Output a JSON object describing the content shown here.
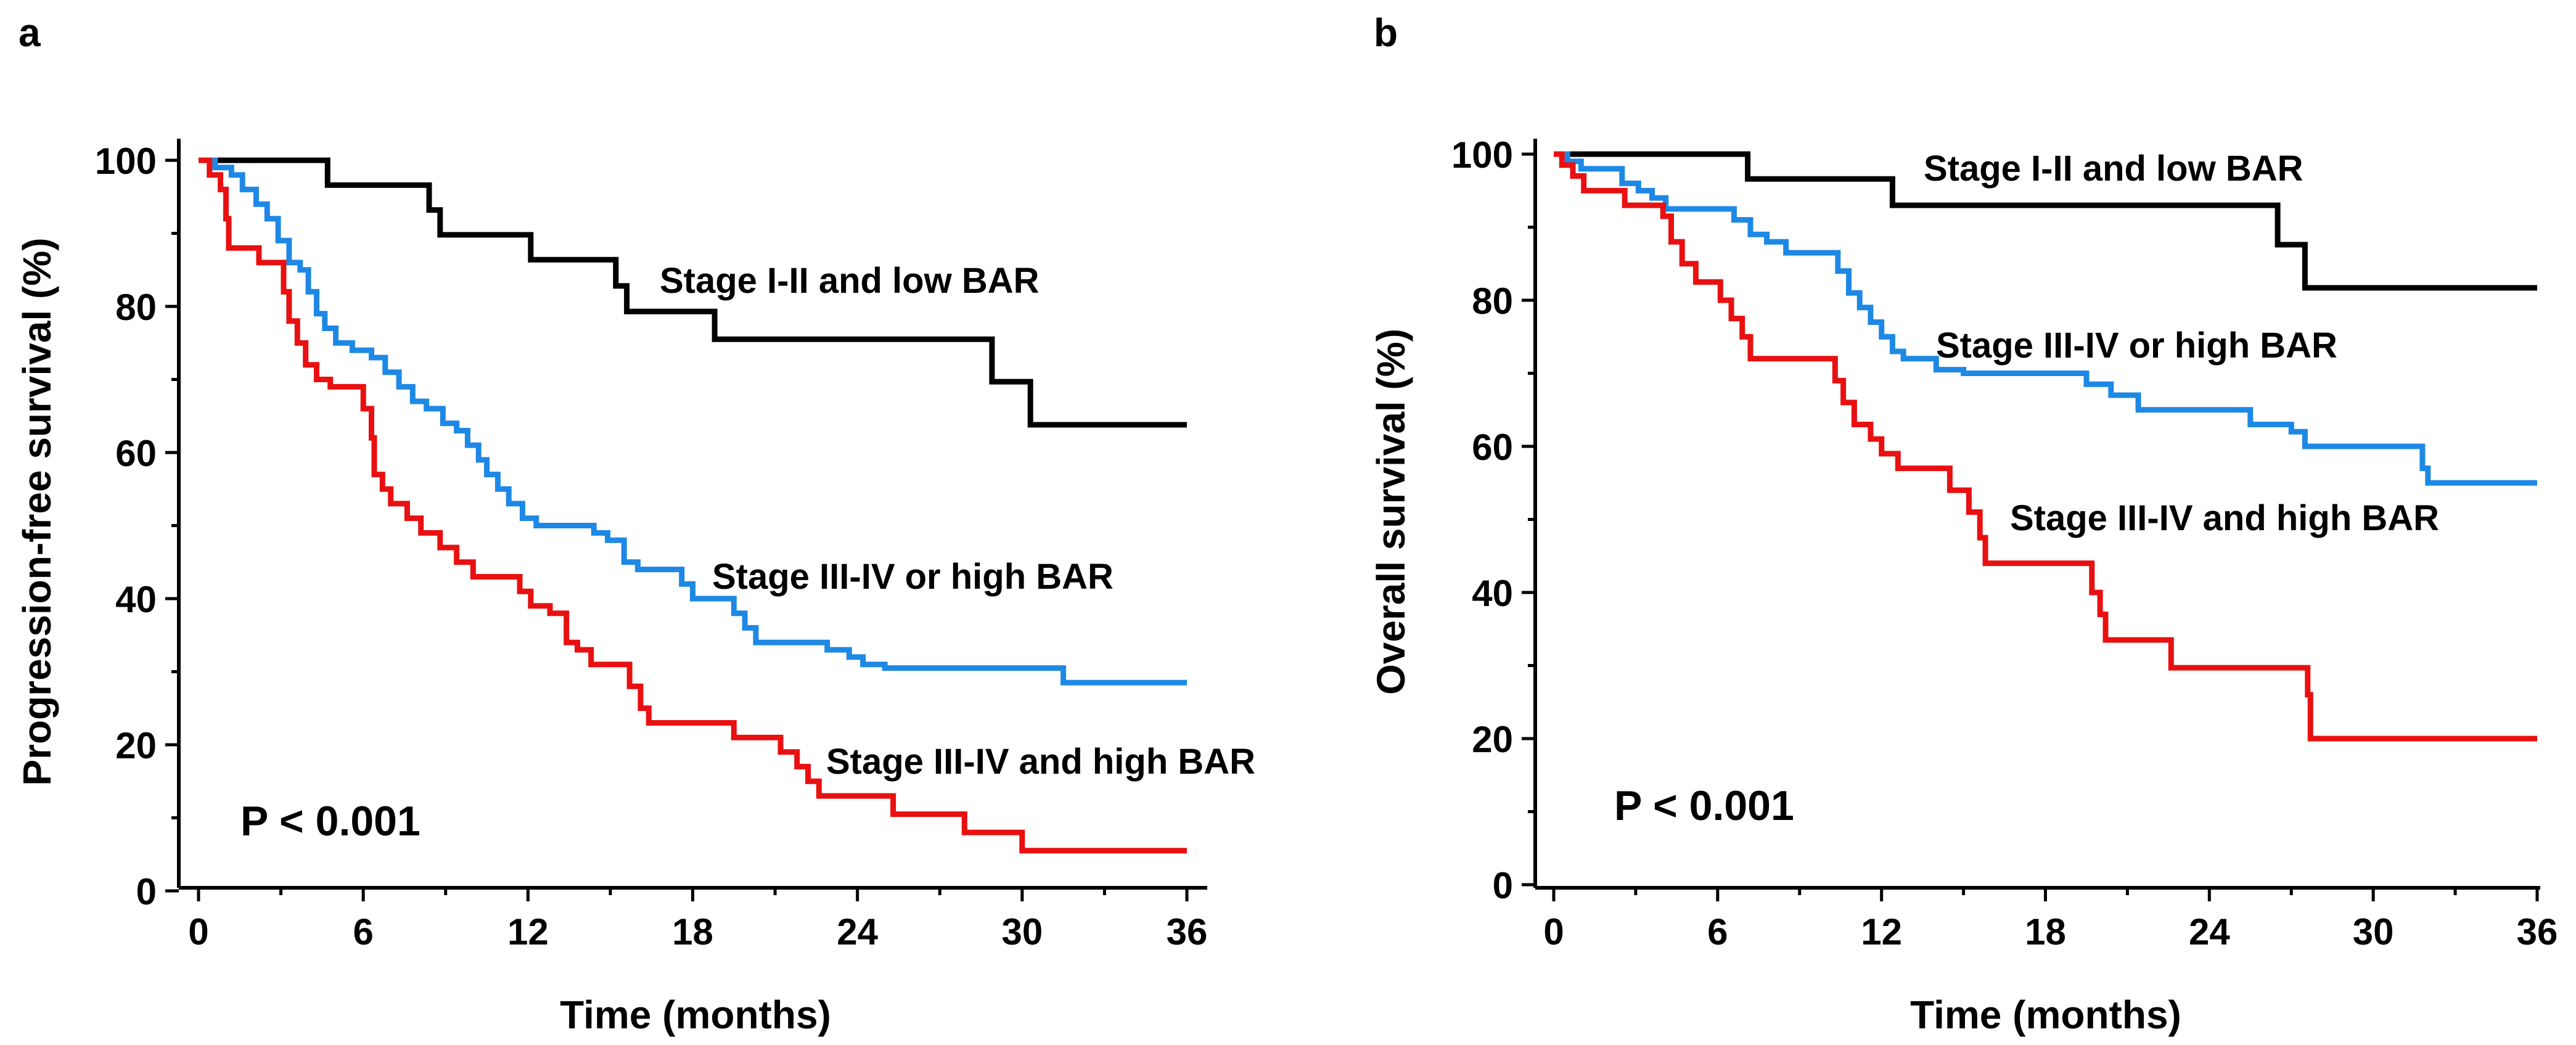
{
  "chart_data": [
    {
      "panel_label": "a",
      "type": "line",
      "step": true,
      "title": "",
      "xlabel": "Time (months)",
      "ylabel": "Progression-free survival (%)",
      "xlim": [
        0,
        36
      ],
      "ylim": [
        0,
        100
      ],
      "xticks": [
        "0",
        "6",
        "12",
        "18",
        "24",
        "30",
        "36"
      ],
      "yticks": [
        "0",
        "20",
        "40",
        "60",
        "80",
        "100"
      ],
      "p_value": "P < 0.001",
      "grid": false,
      "series": [
        {
          "name": "Stage I-II and low BAR",
          "color": "#000000",
          "points": [
            [
              0,
              100
            ],
            [
              4.7,
              100
            ],
            [
              4.7,
              96.6
            ],
            [
              8.4,
              96.6
            ],
            [
              8.4,
              93.2
            ],
            [
              8.8,
              93.2
            ],
            [
              8.8,
              89.8
            ],
            [
              12.1,
              89.8
            ],
            [
              12.1,
              86.4
            ],
            [
              15.2,
              86.4
            ],
            [
              15.2,
              82.8
            ],
            [
              15.6,
              82.8
            ],
            [
              15.6,
              79.3
            ],
            [
              18.8,
              79.3
            ],
            [
              18.8,
              75.5
            ],
            [
              28.9,
              75.5
            ],
            [
              28.9,
              69.7
            ],
            [
              30.3,
              69.7
            ],
            [
              30.3,
              63.8
            ],
            [
              36,
              63.8
            ]
          ]
        },
        {
          "name": "Stage III-IV or high BAR",
          "color": "#1e88e5",
          "points": [
            [
              0,
              100
            ],
            [
              0.6,
              99
            ],
            [
              1.2,
              98
            ],
            [
              1.6,
              96
            ],
            [
              2.1,
              94
            ],
            [
              2.5,
              92
            ],
            [
              2.9,
              89
            ],
            [
              3.3,
              86
            ],
            [
              3.7,
              85
            ],
            [
              4.0,
              82
            ],
            [
              4.3,
              79
            ],
            [
              4.6,
              77
            ],
            [
              5.0,
              75
            ],
            [
              5.6,
              74
            ],
            [
              6.3,
              73
            ],
            [
              6.8,
              71
            ],
            [
              7.3,
              69
            ],
            [
              7.8,
              67
            ],
            [
              8.3,
              66
            ],
            [
              8.9,
              64
            ],
            [
              9.4,
              63
            ],
            [
              9.8,
              61
            ],
            [
              10.2,
              59
            ],
            [
              10.5,
              57
            ],
            [
              10.9,
              55
            ],
            [
              11.3,
              53
            ],
            [
              11.8,
              51
            ],
            [
              12.3,
              50
            ],
            [
              13.5,
              50
            ],
            [
              14.4,
              49
            ],
            [
              14.9,
              48
            ],
            [
              15.5,
              45
            ],
            [
              16.0,
              44
            ],
            [
              17.3,
              44
            ],
            [
              17.6,
              42
            ],
            [
              18.0,
              40
            ],
            [
              19.2,
              40
            ],
            [
              19.5,
              38
            ],
            [
              19.9,
              36
            ],
            [
              20.3,
              34
            ],
            [
              22.4,
              34
            ],
            [
              22.9,
              33
            ],
            [
              23.7,
              32
            ],
            [
              24.2,
              31
            ],
            [
              25.0,
              30.5
            ],
            [
              31.5,
              30.5
            ],
            [
              31.5,
              28.5
            ],
            [
              36,
              28.5
            ]
          ]
        },
        {
          "name": "Stage III-IV and high BAR",
          "color": "#e81010",
          "points": [
            [
              0,
              100
            ],
            [
              0.4,
              98
            ],
            [
              0.8,
              96
            ],
            [
              1.0,
              92
            ],
            [
              1.1,
              88
            ],
            [
              2.1,
              88
            ],
            [
              2.2,
              86
            ],
            [
              2.9,
              86
            ],
            [
              3.1,
              82
            ],
            [
              3.3,
              78
            ],
            [
              3.6,
              75
            ],
            [
              3.9,
              72
            ],
            [
              4.3,
              70
            ],
            [
              4.8,
              69
            ],
            [
              5.8,
              69
            ],
            [
              6.0,
              66
            ],
            [
              6.3,
              62
            ],
            [
              6.4,
              57
            ],
            [
              6.7,
              55
            ],
            [
              7.0,
              53
            ],
            [
              7.6,
              51
            ],
            [
              8.1,
              49
            ],
            [
              8.8,
              47
            ],
            [
              9.4,
              45
            ],
            [
              10.0,
              43
            ],
            [
              11.4,
              43
            ],
            [
              11.7,
              41
            ],
            [
              12.1,
              39
            ],
            [
              12.8,
              38
            ],
            [
              13.4,
              34
            ],
            [
              13.8,
              33
            ],
            [
              14.3,
              31
            ],
            [
              15.5,
              31
            ],
            [
              15.7,
              28
            ],
            [
              16.1,
              25
            ],
            [
              16.4,
              23
            ],
            [
              19.3,
              23
            ],
            [
              19.5,
              21
            ],
            [
              20.9,
              21
            ],
            [
              21.2,
              19
            ],
            [
              21.8,
              17
            ],
            [
              22.2,
              15
            ],
            [
              22.6,
              13
            ],
            [
              25.0,
              13
            ],
            [
              25.3,
              10.5
            ],
            [
              27.7,
              10.5
            ],
            [
              27.9,
              8
            ],
            [
              29.8,
              8
            ],
            [
              30.0,
              5.5
            ],
            [
              36,
              5.5
            ]
          ]
        }
      ]
    },
    {
      "panel_label": "b",
      "type": "line",
      "step": true,
      "title": "",
      "xlabel": "Time (months)",
      "ylabel": "Overall survival (%)",
      "xlim": [
        0,
        36
      ],
      "ylim": [
        0,
        100
      ],
      "xticks": [
        "0",
        "6",
        "12",
        "18",
        "24",
        "30",
        "36"
      ],
      "yticks": [
        "0",
        "20",
        "40",
        "60",
        "80",
        "100"
      ],
      "p_value": "P < 0.001",
      "grid": false,
      "series": [
        {
          "name": "Stage I-II and low BAR",
          "color": "#000000",
          "points": [
            [
              0,
              100
            ],
            [
              7.1,
              100
            ],
            [
              7.1,
              96.6
            ],
            [
              12.4,
              96.6
            ],
            [
              12.4,
              93
            ],
            [
              26.5,
              93
            ],
            [
              26.5,
              87.6
            ],
            [
              27.5,
              87.6
            ],
            [
              27.5,
              81.7
            ],
            [
              36,
              81.7
            ]
          ]
        },
        {
          "name": "Stage III-IV or high BAR",
          "color": "#1e88e5",
          "points": [
            [
              0,
              100
            ],
            [
              0.5,
              99
            ],
            [
              1.0,
              98
            ],
            [
              2.2,
              98
            ],
            [
              2.5,
              96
            ],
            [
              3.1,
              95
            ],
            [
              3.6,
              94
            ],
            [
              4.1,
              92.5
            ],
            [
              6.3,
              92.5
            ],
            [
              6.6,
              91
            ],
            [
              7.2,
              89
            ],
            [
              7.8,
              88
            ],
            [
              8.5,
              86.5
            ],
            [
              10.0,
              86.5
            ],
            [
              10.4,
              84
            ],
            [
              10.8,
              81
            ],
            [
              11.2,
              79
            ],
            [
              11.6,
              77
            ],
            [
              12.0,
              75
            ],
            [
              12.4,
              73
            ],
            [
              12.8,
              72
            ],
            [
              13.7,
              72
            ],
            [
              14.0,
              70.5
            ],
            [
              15.0,
              70
            ],
            [
              19.1,
              70
            ],
            [
              19.5,
              68.5
            ],
            [
              20.4,
              67
            ],
            [
              21.4,
              65
            ],
            [
              25.0,
              65
            ],
            [
              25.5,
              63
            ],
            [
              27.0,
              62
            ],
            [
              27.5,
              60
            ],
            [
              31.6,
              60
            ],
            [
              31.8,
              57
            ],
            [
              32.0,
              55
            ],
            [
              36,
              55
            ]
          ]
        },
        {
          "name": "Stage III-IV and high BAR",
          "color": "#e81010",
          "points": [
            [
              0,
              100
            ],
            [
              0.3,
              98.5
            ],
            [
              0.7,
              97
            ],
            [
              1.1,
              95
            ],
            [
              2.3,
              95
            ],
            [
              2.6,
              93
            ],
            [
              3.8,
              93
            ],
            [
              4.0,
              91.5
            ],
            [
              4.3,
              88
            ],
            [
              4.7,
              85
            ],
            [
              5.2,
              82.5
            ],
            [
              5.9,
              82.5
            ],
            [
              6.1,
              80
            ],
            [
              6.5,
              77.5
            ],
            [
              6.9,
              75
            ],
            [
              7.2,
              72
            ],
            [
              10.1,
              72
            ],
            [
              10.3,
              69
            ],
            [
              10.6,
              66
            ],
            [
              11.0,
              63
            ],
            [
              11.6,
              61
            ],
            [
              12.0,
              59
            ],
            [
              12.6,
              57
            ],
            [
              14.2,
              57
            ],
            [
              14.5,
              54
            ],
            [
              15.2,
              51
            ],
            [
              15.6,
              47.5
            ],
            [
              15.8,
              44
            ],
            [
              19.5,
              44
            ],
            [
              19.7,
              40
            ],
            [
              20.0,
              37
            ],
            [
              20.2,
              33.5
            ],
            [
              22.2,
              33.5
            ],
            [
              22.6,
              29.7
            ],
            [
              27.5,
              29.7
            ],
            [
              27.6,
              26
            ],
            [
              27.7,
              20
            ],
            [
              36,
              20
            ]
          ]
        }
      ]
    }
  ]
}
